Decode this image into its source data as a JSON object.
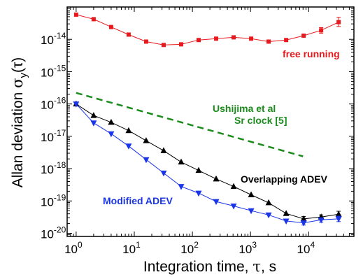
{
  "chart_data": {
    "type": "scatter",
    "x_scale": "log",
    "y_scale": "log",
    "xlim": [
      0.7,
      60000
    ],
    "ylim": [
      8e-21,
      1e-13
    ],
    "grid": false,
    "legend": "none",
    "xlabel": {
      "prefix": "Integration time, ",
      "symbol": "τ",
      "suffix": ", s"
    },
    "ylabel": {
      "prefix": "Allan deviation ",
      "symbol": "σ",
      "subscript": "y",
      "arg": "(τ)"
    },
    "x_ticks": [
      {
        "label": "10",
        "exp": "0",
        "value": 1
      },
      {
        "label": "10",
        "exp": "1",
        "value": 10
      },
      {
        "label": "10",
        "exp": "2",
        "value": 100
      },
      {
        "label": "10",
        "exp": "3",
        "value": 1000
      },
      {
        "label": "10",
        "exp": "4",
        "value": 10000
      }
    ],
    "y_ticks": [
      {
        "label": "10",
        "exp": "-14",
        "value": 1e-14
      },
      {
        "label": "10",
        "exp": "-15",
        "value": 1e-15
      },
      {
        "label": "10",
        "exp": "-16",
        "value": 1e-16
      },
      {
        "label": "10",
        "exp": "-17",
        "value": 1e-17
      },
      {
        "label": "10",
        "exp": "-18",
        "value": 1e-18
      },
      {
        "label": "10",
        "exp": "-19",
        "value": 1e-19
      },
      {
        "label": "10",
        "exp": "-20",
        "value": 1e-20
      }
    ],
    "series": [
      {
        "name": "free running",
        "color": "#e8191e",
        "marker": "square",
        "line": "solid",
        "points": [
          {
            "x": 1,
            "y": 5.8e-14
          },
          {
            "x": 2,
            "y": 4.2e-14
          },
          {
            "x": 4,
            "y": 2.4e-14
          },
          {
            "x": 8,
            "y": 1.4e-14
          },
          {
            "x": 16,
            "y": 8.5e-15
          },
          {
            "x": 32,
            "y": 6.7e-15
          },
          {
            "x": 64,
            "y": 7e-15
          },
          {
            "x": 128,
            "y": 9.5e-15
          },
          {
            "x": 256,
            "y": 1.05e-14
          },
          {
            "x": 512,
            "y": 1.15e-14
          },
          {
            "x": 1024,
            "y": 1.05e-14
          },
          {
            "x": 2048,
            "y": 8.5e-15
          },
          {
            "x": 4096,
            "y": 9.5e-15
          },
          {
            "x": 8192,
            "y": 1.3e-14
          },
          {
            "x": 16384,
            "y": 1.9e-14,
            "err": [
              1.55e-14,
              2.3e-14
            ]
          },
          {
            "x": 32768,
            "y": 3.4e-14,
            "err": [
              2.5e-14,
              4.8e-14
            ]
          }
        ]
      },
      {
        "name": "Overlapping ADEV",
        "color": "#000000",
        "marker": "triangle-up",
        "line": "solid",
        "points": [
          {
            "x": 1,
            "y": 1e-16
          },
          {
            "x": 2,
            "y": 4.4e-17
          },
          {
            "x": 4,
            "y": 2.7e-17
          },
          {
            "x": 8,
            "y": 1.5e-17
          },
          {
            "x": 16,
            "y": 7.3e-18
          },
          {
            "x": 32,
            "y": 3.6e-18
          },
          {
            "x": 64,
            "y": 1.6e-18
          },
          {
            "x": 128,
            "y": 8.8e-19
          },
          {
            "x": 256,
            "y": 4.8e-19
          },
          {
            "x": 512,
            "y": 2.8e-19
          },
          {
            "x": 1024,
            "y": 1.55e-19
          },
          {
            "x": 2048,
            "y": 8.8e-20
          },
          {
            "x": 4096,
            "y": 4.1e-20
          },
          {
            "x": 8192,
            "y": 2.8e-20,
            "err": [
              2.4e-20,
              3.3e-20
            ]
          },
          {
            "x": 16384,
            "y": 3.2e-20,
            "err": [
              2.8e-20,
              3.7e-20
            ]
          },
          {
            "x": 32768,
            "y": 3.9e-20,
            "err": [
              3.1e-20,
              4.8e-20
            ]
          }
        ]
      },
      {
        "name": "Modified ADEV",
        "color": "#1a35e8",
        "marker": "triangle-down",
        "line": "solid",
        "points": [
          {
            "x": 1,
            "y": 1e-16
          },
          {
            "x": 2,
            "y": 2.6e-17
          },
          {
            "x": 4,
            "y": 1.2e-17
          },
          {
            "x": 8,
            "y": 5e-18
          },
          {
            "x": 16,
            "y": 1.9e-18
          },
          {
            "x": 32,
            "y": 7.3e-19
          },
          {
            "x": 64,
            "y": 2.8e-19
          },
          {
            "x": 128,
            "y": 1.75e-19
          },
          {
            "x": 256,
            "y": 9.6e-20
          },
          {
            "x": 512,
            "y": 7e-20
          },
          {
            "x": 1024,
            "y": 5e-20
          },
          {
            "x": 2048,
            "y": 3.7e-20
          },
          {
            "x": 4096,
            "y": 2.4e-20
          },
          {
            "x": 8192,
            "y": 2.1e-20,
            "err": [
              1.8e-20,
              2.4e-20
            ]
          },
          {
            "x": 16384,
            "y": 2.6e-20,
            "err": [
              2.2e-20,
              3e-20
            ]
          },
          {
            "x": 32768,
            "y": 2.8e-20,
            "err": [
              2.3e-20,
              3.4e-20
            ]
          }
        ]
      },
      {
        "name": "Ushijima et al Sr clock [5]",
        "color": "#1b8c1b",
        "marker": "none",
        "line": "dashed",
        "points": [
          {
            "x": 1,
            "y": 2.2e-16
          },
          {
            "x": 8000,
            "y": 2.4e-18
          }
        ]
      }
    ],
    "annotations": [
      {
        "text": "free running",
        "color": "#e8191e",
        "series": 0
      },
      {
        "text": "Ushijima et al",
        "color": "#1b8c1b",
        "series": 3
      },
      {
        "text": "Sr clock [5]",
        "color": "#1b8c1b",
        "series": 3
      },
      {
        "text": "Overlapping ADEV",
        "color": "#000000",
        "series": 1
      },
      {
        "text": "Modified ADEV",
        "color": "#1a35e8",
        "series": 2
      }
    ]
  }
}
